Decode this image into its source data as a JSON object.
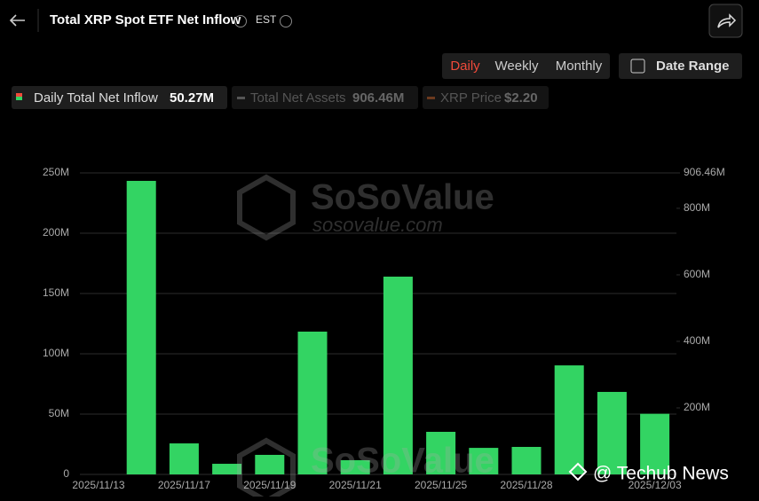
{
  "header": {
    "title": "Total XRP Spot ETF Net Inflow",
    "timezone": "EST"
  },
  "controls": {
    "periods": [
      "Daily",
      "Weekly",
      "Monthly"
    ],
    "date_range": "Date Range"
  },
  "legend": [
    {
      "name": "Daily Total Net Inflow",
      "value": "50.27M"
    },
    {
      "name": "Total Net Assets",
      "value": "906.46M"
    },
    {
      "name": "XRP Price",
      "value": "$2.20"
    }
  ],
  "watermark": {
    "brand": "SoSoValue",
    "site": "sosovalue.com",
    "credit": "@ Techub News"
  },
  "chart_data": {
    "type": "bar",
    "categories": [
      "2025/11/13",
      null,
      "2025/11/17",
      null,
      "2025/11/19",
      null,
      "2025/11/21",
      null,
      "2025/11/25",
      null,
      "2025/11/28",
      null,
      null,
      "2025/12/03"
    ],
    "values": [
      null,
      243.4,
      25.7,
      8.8,
      16.2,
      118.4,
      11.8,
      164,
      35.3,
      22,
      22.8,
      90.4,
      68.4,
      50.27
    ],
    "color": "#33d463",
    "ylim": [
      0,
      250
    ],
    "yticks": [
      0,
      {
        "value": 50,
        "label": "50M"
      },
      {
        "value": 100,
        "label": "100M"
      },
      {
        "value": 150,
        "label": "150M"
      },
      {
        "value": 200,
        "label": "200M"
      },
      {
        "value": 250,
        "label": "250M"
      }
    ],
    "y2lim": [
      0,
      906.46
    ],
    "y2ticks": [
      {
        "value": 200,
        "label": "200M"
      },
      {
        "value": 400,
        "label": "400M"
      },
      {
        "value": 600,
        "label": "600M"
      },
      {
        "value": 800,
        "label": "800M"
      },
      {
        "value": 906.46,
        "label": "906.46M"
      }
    ],
    "grid": true
  }
}
